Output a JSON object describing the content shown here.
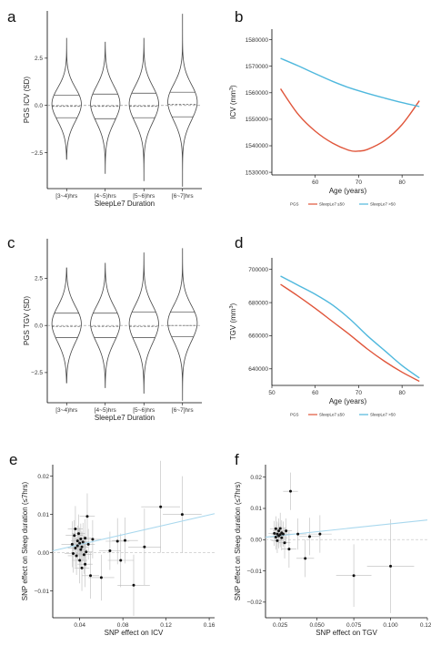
{
  "colors": {
    "sleep_le7": "#e0553a",
    "sleep_gt7": "#4fb8dd",
    "fit_line": "#a9d8ee",
    "violin": "#444444",
    "point": "#111111",
    "errbar": "#bbbbbb"
  },
  "chart_data": [
    {
      "panel": "a",
      "type": "violin",
      "categories": [
        "[3~4)hrs",
        "[4~5)hrs",
        "[5~6)hrs",
        "[6~7]hrs"
      ],
      "xlabel": "SleepLe7 Duration",
      "ylabel": "PGS ICV (SD)",
      "yticks": [
        -2.5,
        0.0,
        2.5
      ],
      "ylim": [
        -4.4,
        5.0
      ],
      "stats": [
        {
          "min": -2.85,
          "max": 3.55,
          "q1": -0.65,
          "median": -0.05,
          "q3": 0.55
        },
        {
          "min": -3.6,
          "max": 3.35,
          "q1": -0.7,
          "median": -0.05,
          "q3": 0.6
        },
        {
          "min": -4.0,
          "max": 3.55,
          "q1": -0.65,
          "median": -0.05,
          "q3": 0.65
        },
        {
          "min": -4.3,
          "max": 4.85,
          "q1": -0.6,
          "median": 0.05,
          "q3": 0.7
        }
      ]
    },
    {
      "panel": "b",
      "type": "line",
      "xlabel": "Age (years)",
      "ylabel": "ICV (mm^3)",
      "xticks": [
        60,
        70,
        80
      ],
      "xlim": [
        50,
        85
      ],
      "yticks": [
        1530000,
        1540000,
        1550000,
        1560000,
        1570000,
        1580000
      ],
      "ylim": [
        1529000,
        1584000
      ],
      "legend_title": "PGS",
      "legend_position": "bottom",
      "series": [
        {
          "name": "SleepLe7 <=50",
          "x": [
            52,
            56,
            60,
            64,
            68,
            70,
            72,
            76,
            80,
            84
          ],
          "y": [
            1561500,
            1552000,
            1545500,
            1541000,
            1538200,
            1538000,
            1538600,
            1542000,
            1548000,
            1557000
          ]
        },
        {
          "name": "SleepLe7 >50",
          "x": [
            52,
            56,
            60,
            64,
            68,
            72,
            76,
            80,
            84
          ],
          "y": [
            1573000,
            1570200,
            1567200,
            1564300,
            1561800,
            1559800,
            1558000,
            1556300,
            1554800
          ]
        }
      ]
    },
    {
      "panel": "c",
      "type": "violin",
      "categories": [
        "[3~4)hrs",
        "[4~5)hrs",
        "[5~6)hrs",
        "[6~7]hrs"
      ],
      "xlabel": "SleepLe7 Duration",
      "ylabel": "PGS TGV (SD)",
      "yticks": [
        -2.5,
        0.0,
        2.5
      ],
      "ylim": [
        -4.1,
        4.6
      ],
      "stats": [
        {
          "min": -3.05,
          "max": 3.05,
          "q1": -0.65,
          "median": -0.05,
          "q3": 0.65
        },
        {
          "min": -3.3,
          "max": 3.3,
          "q1": -0.65,
          "median": -0.05,
          "q3": 0.65
        },
        {
          "min": -3.6,
          "max": 3.85,
          "q1": -0.65,
          "median": -0.05,
          "q3": 0.7
        },
        {
          "min": -4.0,
          "max": 4.1,
          "q1": -0.6,
          "median": 0.0,
          "q3": 0.7
        }
      ]
    },
    {
      "panel": "d",
      "type": "line",
      "xlabel": "Age (years)",
      "ylabel": "TGV (mm^3)",
      "xticks": [
        50,
        60,
        70,
        80
      ],
      "xlim": [
        50,
        85
      ],
      "yticks": [
        640000,
        660000,
        680000,
        700000
      ],
      "ylim": [
        630000,
        707000
      ],
      "legend_title": "PGS",
      "legend_position": "bottom",
      "series": [
        {
          "name": "SleepLe7 <=50",
          "x": [
            52,
            56,
            60,
            64,
            68,
            72,
            76,
            80,
            84
          ],
          "y": [
            691000,
            684000,
            676500,
            668500,
            660500,
            652000,
            644500,
            638000,
            632500
          ]
        },
        {
          "name": "SleepLe7 >50",
          "x": [
            52,
            56,
            60,
            64,
            68,
            72,
            76,
            80,
            84
          ],
          "y": [
            696000,
            690500,
            685000,
            678500,
            670000,
            660000,
            651000,
            642000,
            634500
          ]
        }
      ]
    },
    {
      "panel": "e",
      "type": "scatter",
      "xlabel": "SNP effect on ICV",
      "ylabel": "SNP effect on Sleep duration (<=7hrs)",
      "xticks": [
        0.04,
        0.08,
        0.12,
        0.16
      ],
      "xlim": [
        0.015,
        0.165
      ],
      "yticks": [
        -0.01,
        0.0,
        0.01,
        0.02
      ],
      "ylim": [
        -0.017,
        0.023
      ],
      "fit": {
        "x": [
          0.015,
          0.165
        ],
        "y": [
          0.0005,
          0.0102
        ]
      },
      "points": [
        {
          "x": 0.033,
          "y": 0.0022,
          "xe": 0.01,
          "ye": 0.006
        },
        {
          "x": 0.034,
          "y": -0.0002,
          "xe": 0.008,
          "ye": 0.005
        },
        {
          "x": 0.035,
          "y": 0.0045,
          "xe": 0.008,
          "ye": 0.004
        },
        {
          "x": 0.036,
          "y": 0.0012,
          "xe": 0.007,
          "ye": 0.005
        },
        {
          "x": 0.036,
          "y": 0.0062,
          "xe": 0.007,
          "ye": 0.006
        },
        {
          "x": 0.037,
          "y": -0.0008,
          "xe": 0.008,
          "ye": 0.005
        },
        {
          "x": 0.038,
          "y": 0.0031,
          "xe": 0.006,
          "ye": 0.004
        },
        {
          "x": 0.038,
          "y": 0.0018,
          "xe": 0.007,
          "ye": 0.004
        },
        {
          "x": 0.039,
          "y": 0.005,
          "xe": 0.006,
          "ye": 0.005
        },
        {
          "x": 0.04,
          "y": -0.002,
          "xe": 0.007,
          "ye": 0.006
        },
        {
          "x": 0.04,
          "y": 0.0025,
          "xe": 0.006,
          "ye": 0.004
        },
        {
          "x": 0.041,
          "y": 0.0008,
          "xe": 0.006,
          "ye": 0.005
        },
        {
          "x": 0.041,
          "y": 0.0036,
          "xe": 0.006,
          "ye": 0.004
        },
        {
          "x": 0.042,
          "y": -0.004,
          "xe": 0.007,
          "ye": 0.006
        },
        {
          "x": 0.042,
          "y": 0.0015,
          "xe": 0.006,
          "ye": 0.004
        },
        {
          "x": 0.043,
          "y": 0.0028,
          "xe": 0.006,
          "ye": 0.005
        },
        {
          "x": 0.044,
          "y": -0.0005,
          "xe": 0.007,
          "ye": 0.005
        },
        {
          "x": 0.045,
          "y": 0.0038,
          "xe": 0.006,
          "ye": 0.005
        },
        {
          "x": 0.045,
          "y": -0.003,
          "xe": 0.007,
          "ye": 0.006
        },
        {
          "x": 0.046,
          "y": 0.0002,
          "xe": 0.006,
          "ye": 0.004
        },
        {
          "x": 0.047,
          "y": 0.0095,
          "xe": 0.007,
          "ye": 0.006
        },
        {
          "x": 0.048,
          "y": 0.0022,
          "xe": 0.006,
          "ye": 0.004
        },
        {
          "x": 0.05,
          "y": -0.006,
          "xe": 0.008,
          "ye": 0.006
        },
        {
          "x": 0.052,
          "y": 0.0035,
          "xe": 0.008,
          "ye": 0.005
        },
        {
          "x": 0.06,
          "y": -0.0065,
          "xe": 0.012,
          "ye": 0.006
        },
        {
          "x": 0.068,
          "y": 0.0005,
          "xe": 0.01,
          "ye": 0.005
        },
        {
          "x": 0.075,
          "y": 0.003,
          "xe": 0.011,
          "ye": 0.006
        },
        {
          "x": 0.078,
          "y": -0.002,
          "xe": 0.012,
          "ye": 0.007
        },
        {
          "x": 0.082,
          "y": 0.0032,
          "xe": 0.012,
          "ye": 0.006
        },
        {
          "x": 0.09,
          "y": -0.0085,
          "xe": 0.015,
          "ye": 0.008
        },
        {
          "x": 0.1,
          "y": 0.0015,
          "xe": 0.015,
          "ye": 0.01
        },
        {
          "x": 0.115,
          "y": 0.012,
          "xe": 0.018,
          "ye": 0.012
        },
        {
          "x": 0.135,
          "y": 0.01,
          "xe": 0.018,
          "ye": 0.01
        }
      ]
    },
    {
      "panel": "f",
      "type": "scatter",
      "xlabel": "SNP effect on TGV",
      "ylabel": "SNP effect on Sleep duration (<=7hrs)",
      "xticks": [
        0.025,
        0.05,
        0.075,
        0.1,
        0.125
      ],
      "xlim": [
        0.015,
        0.125
      ],
      "yticks": [
        -0.02,
        -0.01,
        0.0,
        0.01,
        0.02
      ],
      "ylim": [
        -0.025,
        0.024
      ],
      "fit": {
        "x": [
          0.015,
          0.125
        ],
        "y": [
          0.0008,
          0.0063
        ]
      },
      "points": [
        {
          "x": 0.021,
          "y": 0.002,
          "xe": 0.004,
          "ye": 0.004
        },
        {
          "x": 0.022,
          "y": 0.0008,
          "xe": 0.004,
          "ye": 0.004
        },
        {
          "x": 0.022,
          "y": 0.0035,
          "xe": 0.004,
          "ye": 0.004
        },
        {
          "x": 0.023,
          "y": -0.0003,
          "xe": 0.004,
          "ye": 0.004
        },
        {
          "x": 0.023,
          "y": 0.0018,
          "xe": 0.004,
          "ye": 0.004
        },
        {
          "x": 0.024,
          "y": 0.0028,
          "xe": 0.004,
          "ye": 0.004
        },
        {
          "x": 0.024,
          "y": 0.0012,
          "xe": 0.004,
          "ye": 0.004
        },
        {
          "x": 0.025,
          "y": 0.0016,
          "xe": 0.004,
          "ye": 0.004
        },
        {
          "x": 0.025,
          "y": 0.0036,
          "xe": 0.004,
          "ye": 0.005
        },
        {
          "x": 0.026,
          "y": 0.0022,
          "xe": 0.004,
          "ye": 0.004
        },
        {
          "x": 0.026,
          "y": 0.0006,
          "xe": 0.004,
          "ye": 0.004
        },
        {
          "x": 0.027,
          "y": 0.0018,
          "xe": 0.004,
          "ye": 0.004
        },
        {
          "x": 0.028,
          "y": -0.001,
          "xe": 0.004,
          "ye": 0.005
        },
        {
          "x": 0.029,
          "y": 0.0028,
          "xe": 0.004,
          "ye": 0.004
        },
        {
          "x": 0.031,
          "y": -0.003,
          "xe": 0.005,
          "ye": 0.006
        },
        {
          "x": 0.032,
          "y": 0.0155,
          "xe": 0.005,
          "ye": 0.006
        },
        {
          "x": 0.037,
          "y": 0.0018,
          "xe": 0.006,
          "ye": 0.005
        },
        {
          "x": 0.042,
          "y": -0.006,
          "xe": 0.006,
          "ye": 0.006
        },
        {
          "x": 0.045,
          "y": 0.001,
          "xe": 0.007,
          "ye": 0.006
        },
        {
          "x": 0.052,
          "y": 0.0018,
          "xe": 0.008,
          "ye": 0.006
        },
        {
          "x": 0.075,
          "y": -0.0115,
          "xe": 0.012,
          "ye": 0.01
        },
        {
          "x": 0.1,
          "y": -0.0085,
          "xe": 0.016,
          "ye": 0.015
        }
      ]
    }
  ]
}
